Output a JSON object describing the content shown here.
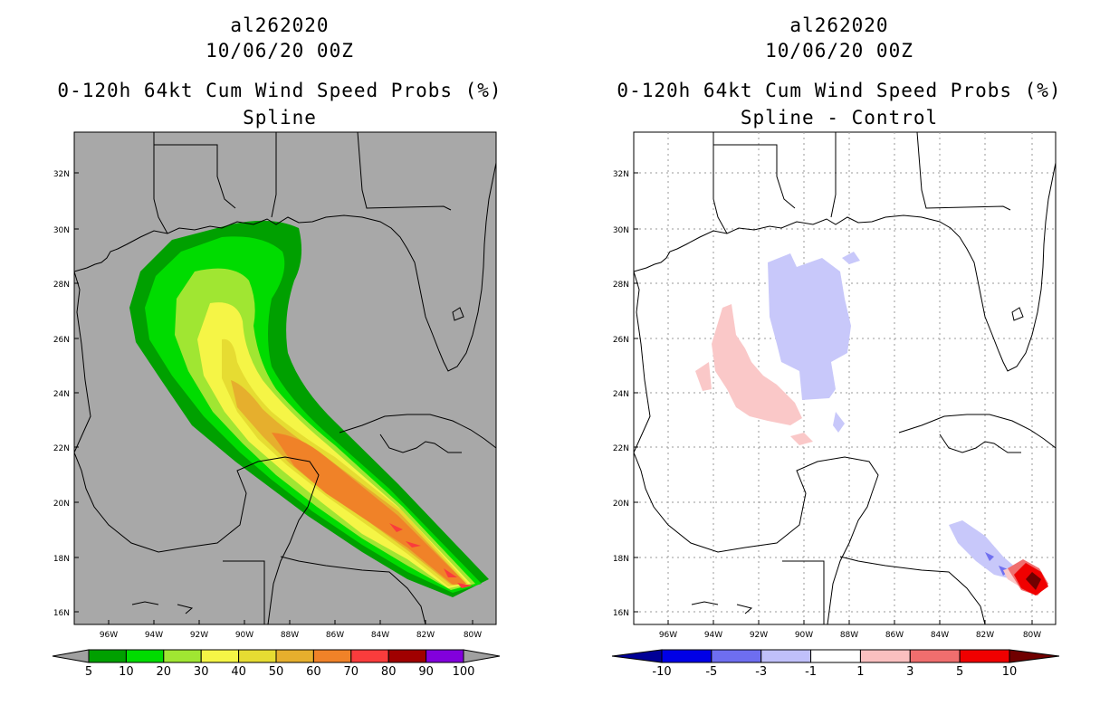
{
  "panels": [
    {
      "storm_id": "al262020",
      "datetime": "10/06/20 00Z",
      "product": "0-120h 64kt Cum Wind Speed Probs (%)",
      "subtitle": "Spline",
      "lat_labels": [
        "32N",
        "30N",
        "28N",
        "26N",
        "24N",
        "22N",
        "20N",
        "18N",
        "16N"
      ],
      "lon_labels": [
        "96W",
        "94W",
        "92W",
        "90W",
        "88W",
        "86W",
        "84W",
        "82W",
        "80W"
      ],
      "colorbar": {
        "labels": [
          "5",
          "10",
          "20",
          "30",
          "40",
          "50",
          "60",
          "70",
          "80",
          "90",
          "100"
        ],
        "colors": [
          "#00a000",
          "#00dc00",
          "#a0e632",
          "#f5f546",
          "#e6dc32",
          "#e6af2d",
          "#f08228",
          "#fa3c3c",
          "#a00000",
          "#8200dc"
        ],
        "ends": [
          "#a0a0a0",
          "#a0a0a0"
        ]
      }
    },
    {
      "storm_id": "al262020",
      "datetime": "10/06/20 00Z",
      "product": "0-120h 64kt Cum Wind Speed Probs (%)",
      "subtitle": "Spline - Control",
      "lat_labels": [
        "32N",
        "30N",
        "28N",
        "26N",
        "24N",
        "22N",
        "20N",
        "18N",
        "16N"
      ],
      "lon_labels": [
        "96W",
        "94W",
        "92W",
        "90W",
        "88W",
        "86W",
        "84W",
        "82W",
        "80W"
      ],
      "colorbar": {
        "labels": [
          "-10",
          "-5",
          "-3",
          "-1",
          "1",
          "3",
          "5",
          "10"
        ],
        "colors": [
          "#0000e6",
          "#6e6ef0",
          "#c0c0fa",
          "#ffffff",
          "#fac0c0",
          "#f06e6e",
          "#f00000"
        ],
        "ends": [
          "#000096",
          "#700000"
        ]
      }
    }
  ],
  "colors": {
    "map_background_left": "#a8a8a8",
    "map_background_right": "#ffffff",
    "coastline": "#000000"
  }
}
